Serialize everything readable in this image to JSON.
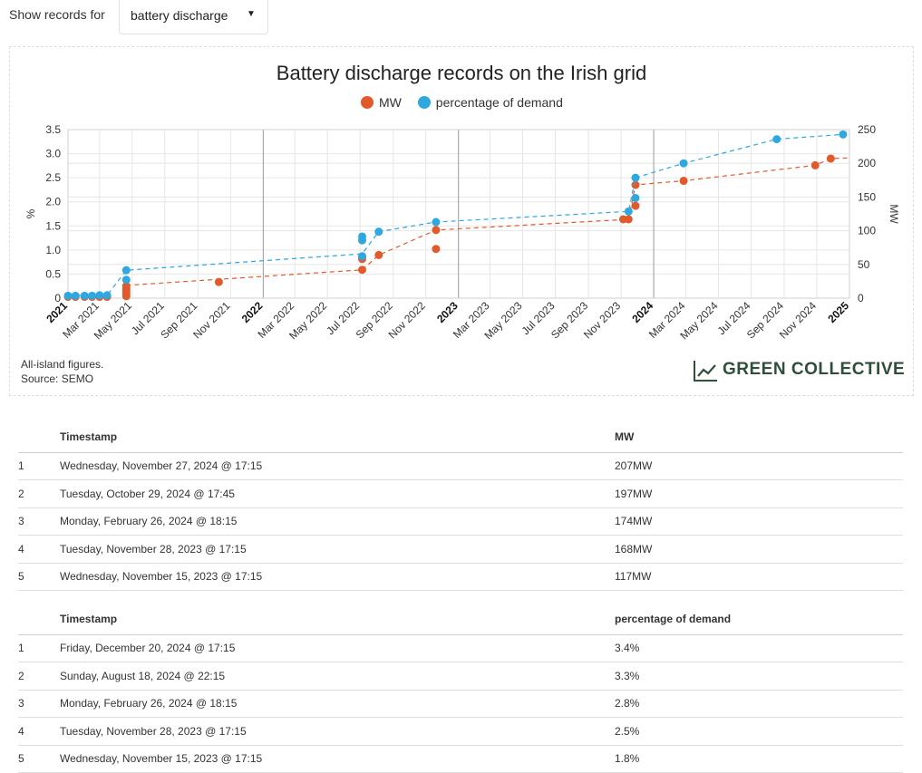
{
  "filter": {
    "label": "Show records for",
    "selected": "battery discharge"
  },
  "chart_data": {
    "type": "scatter",
    "title": "Battery discharge records on the Irish grid",
    "legend_position": "top-center",
    "grid": true,
    "x_range": [
      "2021-01-01",
      "2025-01-01"
    ],
    "x_ticks": [
      "2021",
      "Mar 2021",
      "May 2021",
      "Jul 2021",
      "Sep 2021",
      "Nov 2021",
      "2022",
      "Mar 2022",
      "May 2022",
      "Jul 2022",
      "Sep 2022",
      "Nov 2022",
      "2023",
      "Mar 2023",
      "May 2023",
      "Jul 2023",
      "Sep 2023",
      "Nov 2023",
      "2024",
      "Mar 2024",
      "May 2024",
      "Jul 2024",
      "Sep 2024",
      "Nov 2024",
      "2025"
    ],
    "y_left": {
      "label": "%",
      "range": [
        0,
        3.5
      ],
      "ticks": [
        "0",
        "0.5",
        "1.0",
        "1.5",
        "2.0",
        "2.5",
        "3.0",
        "3.5"
      ]
    },
    "y_right": {
      "label": "MW",
      "range": [
        0,
        250
      ],
      "ticks": [
        "0",
        "50",
        "100",
        "150",
        "200",
        "250"
      ]
    },
    "series": [
      {
        "name": "MW",
        "axis": "right",
        "color": "#e05a2b",
        "points": [
          {
            "x": "2021-01-01",
            "y": 2
          },
          {
            "x": "2021-01-15",
            "y": 2
          },
          {
            "x": "2021-02-01",
            "y": 2
          },
          {
            "x": "2021-02-15",
            "y": 2
          },
          {
            "x": "2021-03-01",
            "y": 2
          },
          {
            "x": "2021-03-15",
            "y": 2
          },
          {
            "x": "2021-04-20",
            "y": 3
          },
          {
            "x": "2021-04-20",
            "y": 6
          },
          {
            "x": "2021-04-20",
            "y": 9
          },
          {
            "x": "2021-04-20",
            "y": 12
          },
          {
            "x": "2021-04-20",
            "y": 15
          },
          {
            "x": "2021-04-20",
            "y": 18
          },
          {
            "x": "2021-10-10",
            "y": 24
          },
          {
            "x": "2022-07-05",
            "y": 42
          },
          {
            "x": "2022-07-05",
            "y": 58
          },
          {
            "x": "2022-07-05",
            "y": 62
          },
          {
            "x": "2022-08-05",
            "y": 64
          },
          {
            "x": "2022-11-20",
            "y": 73
          },
          {
            "x": "2022-11-20",
            "y": 101
          },
          {
            "x": "2023-11-05",
            "y": 117
          },
          {
            "x": "2023-11-15",
            "y": 117
          },
          {
            "x": "2023-11-28",
            "y": 137
          },
          {
            "x": "2023-11-28",
            "y": 168
          },
          {
            "x": "2024-02-26",
            "y": 174
          },
          {
            "x": "2024-10-29",
            "y": 197
          },
          {
            "x": "2024-11-27",
            "y": 207
          }
        ],
        "trend": [
          {
            "x": "2021-04-20",
            "y": 19
          },
          {
            "x": "2022-07-05",
            "y": 42
          },
          {
            "x": "2022-08-05",
            "y": 64
          },
          {
            "x": "2022-11-20",
            "y": 101
          },
          {
            "x": "2023-11-15",
            "y": 117
          },
          {
            "x": "2023-11-28",
            "y": 168
          },
          {
            "x": "2024-02-26",
            "y": 174
          },
          {
            "x": "2024-10-29",
            "y": 197
          },
          {
            "x": "2024-11-27",
            "y": 207
          },
          {
            "x": "2025-01-01",
            "y": 208
          }
        ]
      },
      {
        "name": "percentage of demand",
        "axis": "left",
        "color": "#2ea8df",
        "points": [
          {
            "x": "2021-01-01",
            "y": 0.05
          },
          {
            "x": "2021-01-15",
            "y": 0.05
          },
          {
            "x": "2021-02-01",
            "y": 0.05
          },
          {
            "x": "2021-02-15",
            "y": 0.05
          },
          {
            "x": "2021-03-01",
            "y": 0.06
          },
          {
            "x": "2021-03-15",
            "y": 0.06
          },
          {
            "x": "2021-04-20",
            "y": 0.38
          },
          {
            "x": "2021-04-20",
            "y": 0.58
          },
          {
            "x": "2022-07-05",
            "y": 0.87
          },
          {
            "x": "2022-07-05",
            "y": 1.2
          },
          {
            "x": "2022-07-05",
            "y": 1.28
          },
          {
            "x": "2022-08-05",
            "y": 1.38
          },
          {
            "x": "2022-11-20",
            "y": 1.58
          },
          {
            "x": "2023-11-15",
            "y": 1.8
          },
          {
            "x": "2023-11-28",
            "y": 2.08
          },
          {
            "x": "2023-11-28",
            "y": 2.5
          },
          {
            "x": "2024-02-26",
            "y": 2.8
          },
          {
            "x": "2024-08-18",
            "y": 3.3
          },
          {
            "x": "2024-12-20",
            "y": 3.4
          }
        ],
        "trend": [
          {
            "x": "2021-01-01",
            "y": 0.05
          },
          {
            "x": "2021-03-15",
            "y": 0.06
          },
          {
            "x": "2021-04-20",
            "y": 0.58
          },
          {
            "x": "2022-07-05",
            "y": 0.92
          },
          {
            "x": "2022-08-05",
            "y": 1.38
          },
          {
            "x": "2022-11-20",
            "y": 1.58
          },
          {
            "x": "2023-11-15",
            "y": 1.8
          },
          {
            "x": "2023-11-28",
            "y": 2.5
          },
          {
            "x": "2024-02-26",
            "y": 2.8
          },
          {
            "x": "2024-08-18",
            "y": 3.3
          },
          {
            "x": "2024-12-20",
            "y": 3.4
          },
          {
            "x": "2025-01-01",
            "y": 3.42
          }
        ]
      }
    ],
    "footnote": [
      "All-island figures.",
      "Source: SEMO"
    ],
    "brand": "GREEN COLLECTIVE"
  },
  "tables": [
    {
      "headers": [
        "",
        "Timestamp",
        "MW"
      ],
      "rows": [
        [
          "1",
          "Wednesday, November 27, 2024 @ 17:15",
          "207MW"
        ],
        [
          "2",
          "Tuesday, October 29, 2024 @ 17:45",
          "197MW"
        ],
        [
          "3",
          "Monday, February 26, 2024 @ 18:15",
          "174MW"
        ],
        [
          "4",
          "Tuesday, November 28, 2023 @ 17:15",
          "168MW"
        ],
        [
          "5",
          "Wednesday, November 15, 2023 @ 17:15",
          "117MW"
        ]
      ]
    },
    {
      "headers": [
        "",
        "Timestamp",
        "percentage of demand"
      ],
      "rows": [
        [
          "1",
          "Friday, December 20, 2024 @ 17:15",
          "3.4%"
        ],
        [
          "2",
          "Sunday, August 18, 2024 @ 22:15",
          "3.3%"
        ],
        [
          "3",
          "Monday, February 26, 2024 @ 18:15",
          "2.8%"
        ],
        [
          "4",
          "Tuesday, November 28, 2023 @ 17:15",
          "2.5%"
        ],
        [
          "5",
          "Wednesday, November 15, 2023 @ 17:15",
          "1.8%"
        ]
      ]
    }
  ]
}
